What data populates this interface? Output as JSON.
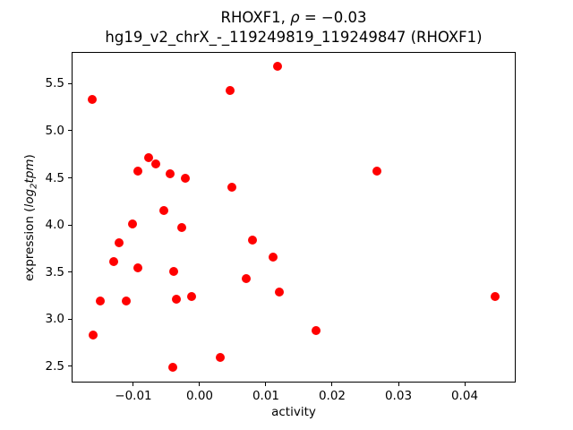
{
  "title": {
    "line1_prefix": "RHOXF1, ",
    "line1_rho": "ρ",
    "line1_value": " = −0.03",
    "line2": "hg19_v2_chrX_-_119249819_119249847 (RHOXF1)"
  },
  "axes_labels": {
    "xlabel": "activity",
    "ylabel_prefix": "expression (",
    "ylabel_math_word": "log",
    "ylabel_math_sub": "2",
    "ylabel_math_word2": "tpm",
    "ylabel_suffix": ")"
  },
  "chart_data": {
    "type": "scatter",
    "title": "RHOXF1, ρ = −0.03",
    "subtitle": "hg19_v2_chrX_-_119249819_119249847 (RHOXF1)",
    "correlation_rho": -0.03,
    "xlabel": "activity",
    "ylabel": "expression (log2 tpm)",
    "marker_color": "#ff0000",
    "marker_diameter_px": 10,
    "grid": false,
    "legend": null,
    "xlim": [
      -0.01932,
      0.0477
    ],
    "ylim": [
      2.327,
      5.8365
    ],
    "x_ticks": [
      -0.01,
      0,
      0.01,
      0.02,
      0.03,
      0.04
    ],
    "x_tick_labels": [
      "−0.01",
      "0.00",
      "0.01",
      "0.02",
      "0.03",
      "0.04"
    ],
    "y_ticks": [
      2.5,
      3.0,
      3.5,
      4.0,
      4.5,
      5.0,
      5.5
    ],
    "y_tick_labels": [
      "2.5",
      "3.0",
      "3.5",
      "4.0",
      "4.5",
      "5.0",
      "5.5"
    ],
    "points": [
      [
        -0.0162,
        5.33
      ],
      [
        0.0118,
        5.68
      ],
      [
        0.0046,
        5.43
      ],
      [
        -0.0077,
        4.71
      ],
      [
        -0.0066,
        4.65
      ],
      [
        -0.0093,
        4.57
      ],
      [
        -0.0044,
        4.54
      ],
      [
        -0.0022,
        4.5
      ],
      [
        0.0049,
        4.4
      ],
      [
        -0.0054,
        4.15
      ],
      [
        0.0267,
        4.57
      ],
      [
        -0.0101,
        4.01
      ],
      [
        -0.0027,
        3.97
      ],
      [
        -0.0121,
        3.81
      ],
      [
        0.008,
        3.84
      ],
      [
        -0.013,
        3.61
      ],
      [
        -0.0093,
        3.54
      ],
      [
        -0.0039,
        3.51
      ],
      [
        0.0111,
        3.66
      ],
      [
        0.007,
        3.43
      ],
      [
        0.012,
        3.29
      ],
      [
        -0.015,
        3.19
      ],
      [
        -0.0111,
        3.19
      ],
      [
        -0.0035,
        3.21
      ],
      [
        -0.0012,
        3.24
      ],
      [
        -0.0161,
        2.83
      ],
      [
        0.0031,
        2.59
      ],
      [
        -0.0041,
        2.49
      ],
      [
        0.0176,
        2.88
      ],
      [
        0.0446,
        3.24
      ]
    ]
  }
}
